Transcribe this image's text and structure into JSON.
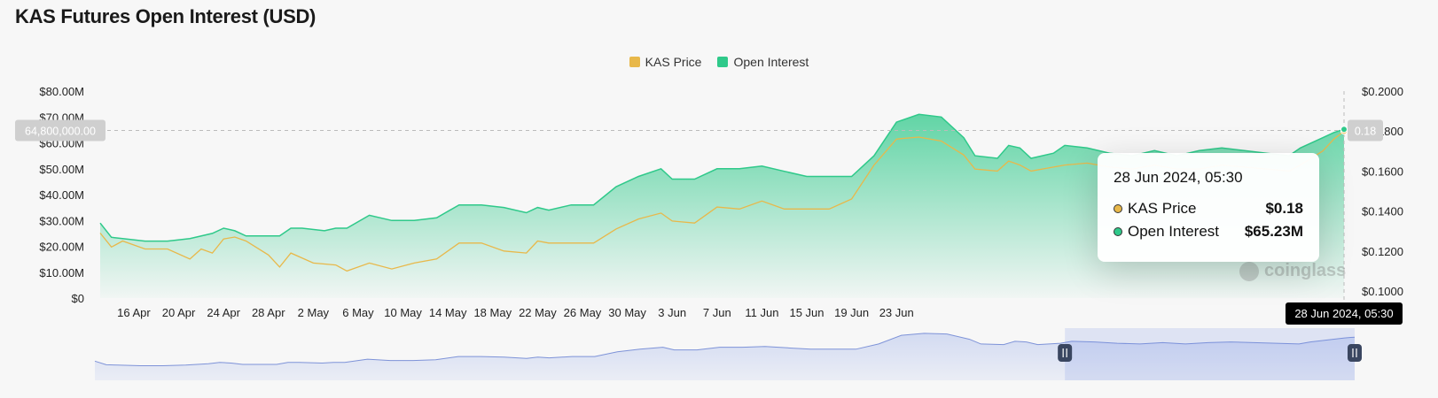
{
  "title": "KAS Futures Open Interest (USD)",
  "legend": [
    {
      "label": "KAS Price",
      "color": "#e8b84a"
    },
    {
      "label": "Open Interest",
      "color": "#2fc98a"
    }
  ],
  "crosshair": {
    "left_value": "64,800,000.00",
    "right_value": "0.18",
    "time_label": "28 Jun 2024, 05:30"
  },
  "tooltip": {
    "time": "28 Jun 2024, 05:30",
    "rows": [
      {
        "label": "KAS Price",
        "value": "$0.18",
        "icon": "yellow-dot-icon"
      },
      {
        "label": "Open Interest",
        "value": "$65.23M",
        "icon": "green-dot-icon"
      }
    ]
  },
  "watermark": "coinglass",
  "chart_data": {
    "type": "area",
    "title": "KAS Futures Open Interest (USD)",
    "x_tick_labels": [
      "16 Apr",
      "20 Apr",
      "24 Apr",
      "28 Apr",
      "2 May",
      "6 May",
      "10 May",
      "14 May",
      "18 May",
      "22 May",
      "26 May",
      "30 May",
      "3 Jun",
      "7 Jun",
      "11 Jun",
      "15 Jun",
      "19 Jun",
      "23 Jun"
    ],
    "y_left_ticks": [
      "$0",
      "$10.00M",
      "$20.00M",
      "$30.00M",
      "$40.00M",
      "$50.00M",
      "$60.00M",
      "$70.00M",
      "$80.00M"
    ],
    "y_right_ticks": [
      "$0.1000",
      "$0.1200",
      "$0.1400",
      "$0.1600",
      "$0.1800",
      "$0.2000"
    ],
    "y_left_range": [
      0,
      80
    ],
    "y_left_unit": "M USD",
    "y_right_range": [
      0.09,
      0.2
    ],
    "x_start": "2024-04-13",
    "x_end": "2024-06-28",
    "series": [
      {
        "name": "Open Interest",
        "axis": "left",
        "color": "#2fc98a",
        "points": [
          [
            0,
            29
          ],
          [
            1,
            23.5
          ],
          [
            2,
            23
          ],
          [
            4,
            22
          ],
          [
            6,
            22
          ],
          [
            8,
            23
          ],
          [
            10,
            25
          ],
          [
            11,
            27
          ],
          [
            12,
            26
          ],
          [
            13,
            24
          ],
          [
            16,
            24
          ],
          [
            17,
            27
          ],
          [
            18,
            27
          ],
          [
            20,
            26
          ],
          [
            21,
            27
          ],
          [
            22,
            27
          ],
          [
            24,
            32
          ],
          [
            26,
            30
          ],
          [
            28,
            30
          ],
          [
            30,
            31
          ],
          [
            32,
            36
          ],
          [
            34,
            36
          ],
          [
            36,
            35
          ],
          [
            38,
            33
          ],
          [
            39,
            35
          ],
          [
            40,
            34
          ],
          [
            42,
            36
          ],
          [
            44,
            36
          ],
          [
            46,
            43
          ],
          [
            48,
            47
          ],
          [
            50,
            50
          ],
          [
            51,
            46
          ],
          [
            53,
            46
          ],
          [
            55,
            50
          ],
          [
            57,
            50
          ],
          [
            59,
            51
          ],
          [
            61,
            49
          ],
          [
            63,
            47
          ],
          [
            65,
            47
          ],
          [
            67,
            47
          ],
          [
            69,
            55
          ],
          [
            71,
            68
          ],
          [
            73,
            71
          ],
          [
            75,
            70
          ],
          [
            77,
            62
          ],
          [
            78,
            55
          ],
          [
            80,
            54
          ],
          [
            81,
            59
          ],
          [
            82,
            58
          ],
          [
            83,
            54
          ],
          [
            85,
            56
          ],
          [
            86,
            59
          ],
          [
            88,
            58
          ],
          [
            90,
            56
          ],
          [
            92,
            55
          ],
          [
            94,
            57
          ],
          [
            96,
            55
          ],
          [
            98,
            57
          ],
          [
            100,
            58
          ],
          [
            102,
            57
          ],
          [
            104,
            56
          ],
          [
            106,
            55
          ],
          [
            107,
            58
          ],
          [
            109,
            62
          ],
          [
            110,
            64
          ],
          [
            110.9,
            65.23
          ]
        ]
      },
      {
        "name": "KAS Price",
        "axis": "right",
        "color": "#e8b84a",
        "points": [
          [
            0,
            0.129
          ],
          [
            1,
            0.122
          ],
          [
            2,
            0.125
          ],
          [
            4,
            0.121
          ],
          [
            6,
            0.121
          ],
          [
            8,
            0.116
          ],
          [
            9,
            0.121
          ],
          [
            10,
            0.119
          ],
          [
            11,
            0.126
          ],
          [
            12,
            0.127
          ],
          [
            13,
            0.125
          ],
          [
            15,
            0.118
          ],
          [
            16,
            0.112
          ],
          [
            17,
            0.119
          ],
          [
            19,
            0.114
          ],
          [
            21,
            0.113
          ],
          [
            22,
            0.11
          ],
          [
            24,
            0.114
          ],
          [
            26,
            0.111
          ],
          [
            28,
            0.114
          ],
          [
            30,
            0.116
          ],
          [
            32,
            0.124
          ],
          [
            34,
            0.124
          ],
          [
            36,
            0.12
          ],
          [
            38,
            0.119
          ],
          [
            39,
            0.125
          ],
          [
            40,
            0.124
          ],
          [
            42,
            0.124
          ],
          [
            44,
            0.124
          ],
          [
            46,
            0.131
          ],
          [
            48,
            0.136
          ],
          [
            50,
            0.139
          ],
          [
            51,
            0.135
          ],
          [
            53,
            0.134
          ],
          [
            55,
            0.142
          ],
          [
            57,
            0.141
          ],
          [
            59,
            0.145
          ],
          [
            61,
            0.141
          ],
          [
            63,
            0.141
          ],
          [
            65,
            0.141
          ],
          [
            67,
            0.146
          ],
          [
            69,
            0.163
          ],
          [
            71,
            0.176
          ],
          [
            73,
            0.177
          ],
          [
            75,
            0.175
          ],
          [
            77,
            0.168
          ],
          [
            78,
            0.161
          ],
          [
            80,
            0.16
          ],
          [
            81,
            0.165
          ],
          [
            82,
            0.163
          ],
          [
            83,
            0.16
          ],
          [
            85,
            0.162
          ],
          [
            86,
            0.163
          ],
          [
            88,
            0.164
          ],
          [
            90,
            0.162
          ],
          [
            92,
            0.161
          ],
          [
            94,
            0.163
          ],
          [
            96,
            0.161
          ],
          [
            98,
            0.161
          ],
          [
            100,
            0.163
          ],
          [
            102,
            0.162
          ],
          [
            104,
            0.161
          ],
          [
            106,
            0.16
          ],
          [
            107,
            0.163
          ],
          [
            109,
            0.17
          ],
          [
            110,
            0.176
          ],
          [
            110.9,
            0.18
          ]
        ]
      }
    ],
    "navigator": {
      "selection_start_fraction": 0.77,
      "selection_end_fraction": 1.0
    }
  }
}
